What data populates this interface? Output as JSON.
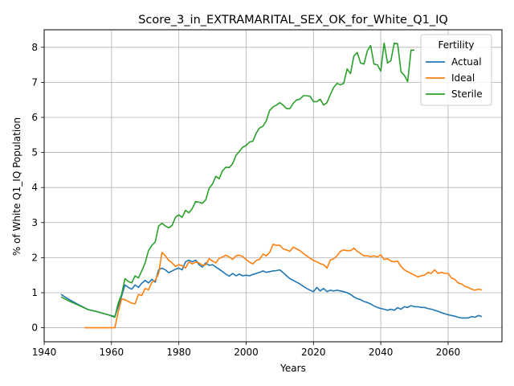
{
  "chart_data": {
    "type": "line",
    "title": "Score_3_in_EXTRAMARITAL_SEX_OK_for_White_Q1_IQ",
    "xlabel": "Years",
    "ylabel": "% of White Q1_IQ Population",
    "xlim": [
      1940,
      2076
    ],
    "ylim": [
      -0.4,
      8.5
    ],
    "xticks": [
      1940,
      1960,
      1980,
      2000,
      2020,
      2040,
      2060
    ],
    "yticks": [
      0,
      1,
      2,
      3,
      4,
      5,
      6,
      7,
      8
    ],
    "grid": true,
    "legend": {
      "title": "Fertility",
      "placement": "top-right"
    },
    "series": [
      {
        "name": "Actual",
        "color": "#1f77b4",
        "x": [
          1945,
          1947,
          1950,
          1953,
          1956,
          1959,
          1961,
          1962,
          1963,
          1964,
          1965,
          1966,
          1967,
          1968,
          1969,
          1970,
          1971,
          1972,
          1973,
          1974,
          1975,
          1976,
          1977,
          1978,
          1979,
          1980,
          1981,
          1982,
          1983,
          1984,
          1985,
          1986,
          1987,
          1988,
          1989,
          1990,
          1991,
          1992,
          1993,
          1994,
          1995,
          1996,
          1997,
          1998,
          1999,
          2000,
          2001,
          2002,
          2003,
          2004,
          2005,
          2006,
          2007,
          2008,
          2009,
          2010,
          2011,
          2012,
          2013,
          2014,
          2015,
          2016,
          2017,
          2018,
          2019,
          2020,
          2021,
          2022,
          2023,
          2024,
          2025,
          2026,
          2027,
          2028,
          2029,
          2030,
          2031,
          2032,
          2033,
          2034,
          2035,
          2036,
          2037,
          2038,
          2039,
          2040,
          2041,
          2042,
          2043,
          2044,
          2045,
          2046,
          2047,
          2048,
          2049,
          2050,
          2051,
          2052,
          2053,
          2054,
          2055,
          2056,
          2057,
          2058,
          2059,
          2060,
          2061,
          2062,
          2063,
          2064,
          2065,
          2066,
          2067,
          2068,
          2069,
          2070
        ],
        "values": [
          0.95,
          0.83,
          0.67,
          0.52,
          0.45,
          0.37,
          0.32,
          0.6,
          0.9,
          1.22,
          1.15,
          1.1,
          1.22,
          1.15,
          1.27,
          1.35,
          1.28,
          1.38,
          1.3,
          1.65,
          1.7,
          1.65,
          1.57,
          1.62,
          1.67,
          1.7,
          1.65,
          1.88,
          1.93,
          1.88,
          1.93,
          1.8,
          1.73,
          1.85,
          1.78,
          1.8,
          1.73,
          1.67,
          1.6,
          1.53,
          1.47,
          1.55,
          1.48,
          1.53,
          1.48,
          1.5,
          1.48,
          1.52,
          1.55,
          1.58,
          1.62,
          1.58,
          1.6,
          1.62,
          1.63,
          1.65,
          1.57,
          1.48,
          1.4,
          1.35,
          1.3,
          1.25,
          1.18,
          1.12,
          1.07,
          1.03,
          1.15,
          1.05,
          1.12,
          1.03,
          1.07,
          1.05,
          1.07,
          1.05,
          1.03,
          1.0,
          0.95,
          0.88,
          0.83,
          0.8,
          0.75,
          0.72,
          0.68,
          0.62,
          0.58,
          0.55,
          0.53,
          0.5,
          0.53,
          0.5,
          0.57,
          0.53,
          0.6,
          0.58,
          0.63,
          0.6,
          0.6,
          0.58,
          0.58,
          0.55,
          0.53,
          0.5,
          0.47,
          0.43,
          0.4,
          0.37,
          0.35,
          0.33,
          0.3,
          0.28,
          0.28,
          0.28,
          0.32,
          0.3,
          0.35,
          0.32
        ]
      },
      {
        "name": "Ideal",
        "color": "#ff7f0e",
        "x": [
          1952,
          1955,
          1958,
          1961,
          1962,
          1963,
          1964,
          1965,
          1966,
          1967,
          1968,
          1969,
          1970,
          1971,
          1972,
          1973,
          1974,
          1975,
          1976,
          1977,
          1978,
          1979,
          1980,
          1981,
          1982,
          1983,
          1984,
          1985,
          1986,
          1987,
          1988,
          1989,
          1990,
          1991,
          1992,
          1993,
          1994,
          1995,
          1996,
          1997,
          1998,
          1999,
          2000,
          2001,
          2002,
          2003,
          2004,
          2005,
          2006,
          2007,
          2008,
          2009,
          2010,
          2011,
          2012,
          2013,
          2014,
          2015,
          2016,
          2017,
          2018,
          2019,
          2020,
          2021,
          2022,
          2023,
          2024,
          2025,
          2026,
          2027,
          2028,
          2029,
          2030,
          2031,
          2032,
          2033,
          2034,
          2035,
          2036,
          2037,
          2038,
          2039,
          2040,
          2041,
          2042,
          2043,
          2044,
          2045,
          2046,
          2047,
          2048,
          2049,
          2050,
          2051,
          2052,
          2053,
          2054,
          2055,
          2056,
          2057,
          2058,
          2059,
          2060,
          2061,
          2062,
          2063,
          2064,
          2065,
          2066,
          2067,
          2068,
          2069,
          2070
        ],
        "values": [
          0,
          0,
          0,
          0,
          0.45,
          0.82,
          0.8,
          0.75,
          0.7,
          0.68,
          0.95,
          0.92,
          1.12,
          1.08,
          1.3,
          1.35,
          1.55,
          2.15,
          2.05,
          1.92,
          1.85,
          1.75,
          1.8,
          1.77,
          1.7,
          1.88,
          1.82,
          1.87,
          1.85,
          1.78,
          1.8,
          1.97,
          1.9,
          1.85,
          1.98,
          2.02,
          2.07,
          2.02,
          1.95,
          2.05,
          2.07,
          2.03,
          1.95,
          1.87,
          1.82,
          1.92,
          1.95,
          2.1,
          2.05,
          2.15,
          2.38,
          2.35,
          2.35,
          2.25,
          2.22,
          2.18,
          2.3,
          2.25,
          2.2,
          2.12,
          2.05,
          1.98,
          1.92,
          1.88,
          1.83,
          1.8,
          1.7,
          1.93,
          1.97,
          2.05,
          2.18,
          2.22,
          2.2,
          2.2,
          2.27,
          2.18,
          2.12,
          2.05,
          2.05,
          2.03,
          2.05,
          2.02,
          2.08,
          1.95,
          1.97,
          1.9,
          1.88,
          1.9,
          1.75,
          1.65,
          1.6,
          1.55,
          1.5,
          1.45,
          1.48,
          1.5,
          1.58,
          1.55,
          1.65,
          1.55,
          1.58,
          1.55,
          1.55,
          1.42,
          1.38,
          1.28,
          1.25,
          1.18,
          1.15,
          1.1,
          1.07,
          1.1,
          1.08
        ]
      },
      {
        "name": "Sterile",
        "color": "#2ca02c",
        "x": [
          1945,
          1947,
          1950,
          1953,
          1956,
          1959,
          1961,
          1962,
          1963,
          1964,
          1965,
          1966,
          1967,
          1968,
          1969,
          1970,
          1971,
          1972,
          1973,
          1974,
          1975,
          1976,
          1977,
          1978,
          1979,
          1980,
          1981,
          1982,
          1983,
          1984,
          1985,
          1986,
          1987,
          1988,
          1989,
          1990,
          1991,
          1992,
          1993,
          1994,
          1995,
          1996,
          1997,
          1998,
          1999,
          2000,
          2001,
          2002,
          2003,
          2004,
          2005,
          2006,
          2007,
          2008,
          2009,
          2010,
          2011,
          2012,
          2013,
          2014,
          2015,
          2016,
          2017,
          2018,
          2019,
          2020,
          2021,
          2022,
          2023,
          2024,
          2025,
          2026,
          2027,
          2028,
          2029,
          2030,
          2031,
          2032,
          2033,
          2034,
          2035,
          2036,
          2037,
          2038,
          2039,
          2040,
          2041,
          2042,
          2043,
          2044,
          2045,
          2046,
          2047,
          2048,
          2049,
          2050
        ],
        "values": [
          0.88,
          0.78,
          0.65,
          0.52,
          0.45,
          0.37,
          0.3,
          0.7,
          0.95,
          1.4,
          1.32,
          1.28,
          1.48,
          1.42,
          1.62,
          1.85,
          2.2,
          2.35,
          2.45,
          2.9,
          2.98,
          2.9,
          2.85,
          2.92,
          3.15,
          3.22,
          3.15,
          3.35,
          3.28,
          3.4,
          3.6,
          3.58,
          3.55,
          3.65,
          3.98,
          4.1,
          4.32,
          4.25,
          4.48,
          4.58,
          4.57,
          4.68,
          4.92,
          5.03,
          5.15,
          5.2,
          5.3,
          5.32,
          5.55,
          5.7,
          5.75,
          5.9,
          6.2,
          6.3,
          6.35,
          6.42,
          6.35,
          6.25,
          6.25,
          6.4,
          6.5,
          6.52,
          6.62,
          6.62,
          6.6,
          6.45,
          6.45,
          6.52,
          6.35,
          6.42,
          6.65,
          6.85,
          6.97,
          6.93,
          6.97,
          7.38,
          7.25,
          7.75,
          7.85,
          7.55,
          7.52,
          7.9,
          8.05,
          7.52,
          7.5,
          7.32,
          8.12,
          7.55,
          7.62,
          8.12,
          8.1,
          7.3,
          7.2,
          7.02,
          7.92,
          7.92
        ]
      }
    ]
  }
}
